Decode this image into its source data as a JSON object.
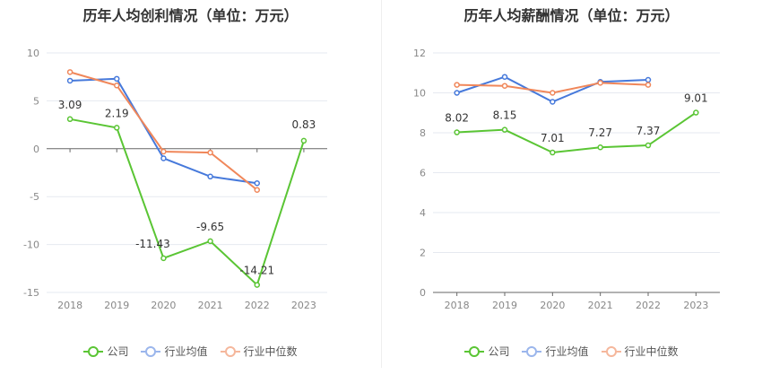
{
  "chart_data": [
    {
      "type": "line",
      "title": "历年人均创利情况（单位：万元）",
      "categories": [
        "2018",
        "2019",
        "2020",
        "2021",
        "2022",
        "2023"
      ],
      "yticks": [
        "10",
        "5",
        "0",
        "-5",
        "-10",
        "-15"
      ],
      "ylim": [
        -15,
        10
      ],
      "series": [
        {
          "name": "公司",
          "color": "#5ac534",
          "values": [
            3.09,
            2.19,
            -11.43,
            -9.65,
            -14.21,
            0.83
          ],
          "labels": [
            "3.09",
            "2.19",
            "-11.43",
            "-9.65",
            "-14.21",
            "0.83"
          ]
        },
        {
          "name": "行业均值",
          "color": "#4679db",
          "values": [
            7.1,
            7.3,
            -1.0,
            -2.9,
            -3.6,
            null
          ]
        },
        {
          "name": "行业中位数",
          "color": "#f0875a",
          "values": [
            8.0,
            6.6,
            -0.3,
            -0.4,
            -4.3,
            null
          ]
        }
      ],
      "grid": true,
      "legend": "bottom"
    },
    {
      "type": "line",
      "title": "历年人均薪酬情况（单位：万元）",
      "categories": [
        "2018",
        "2019",
        "2020",
        "2021",
        "2022",
        "2023"
      ],
      "yticks": [
        "12",
        "10",
        "8",
        "6",
        "4",
        "2",
        "0"
      ],
      "ylim": [
        0,
        12
      ],
      "series": [
        {
          "name": "公司",
          "color": "#5ac534",
          "values": [
            8.02,
            8.15,
            7.01,
            7.27,
            7.37,
            9.01
          ],
          "labels": [
            "8.02",
            "8.15",
            "7.01",
            "7.27",
            "7.37",
            "9.01"
          ]
        },
        {
          "name": "行业均值",
          "color": "#4679db",
          "values": [
            10.0,
            10.8,
            9.55,
            10.55,
            10.65,
            null
          ]
        },
        {
          "name": "行业中位数",
          "color": "#f0875a",
          "values": [
            10.4,
            10.35,
            10.0,
            10.5,
            10.4,
            null
          ]
        }
      ],
      "grid": true,
      "legend": "bottom"
    }
  ]
}
